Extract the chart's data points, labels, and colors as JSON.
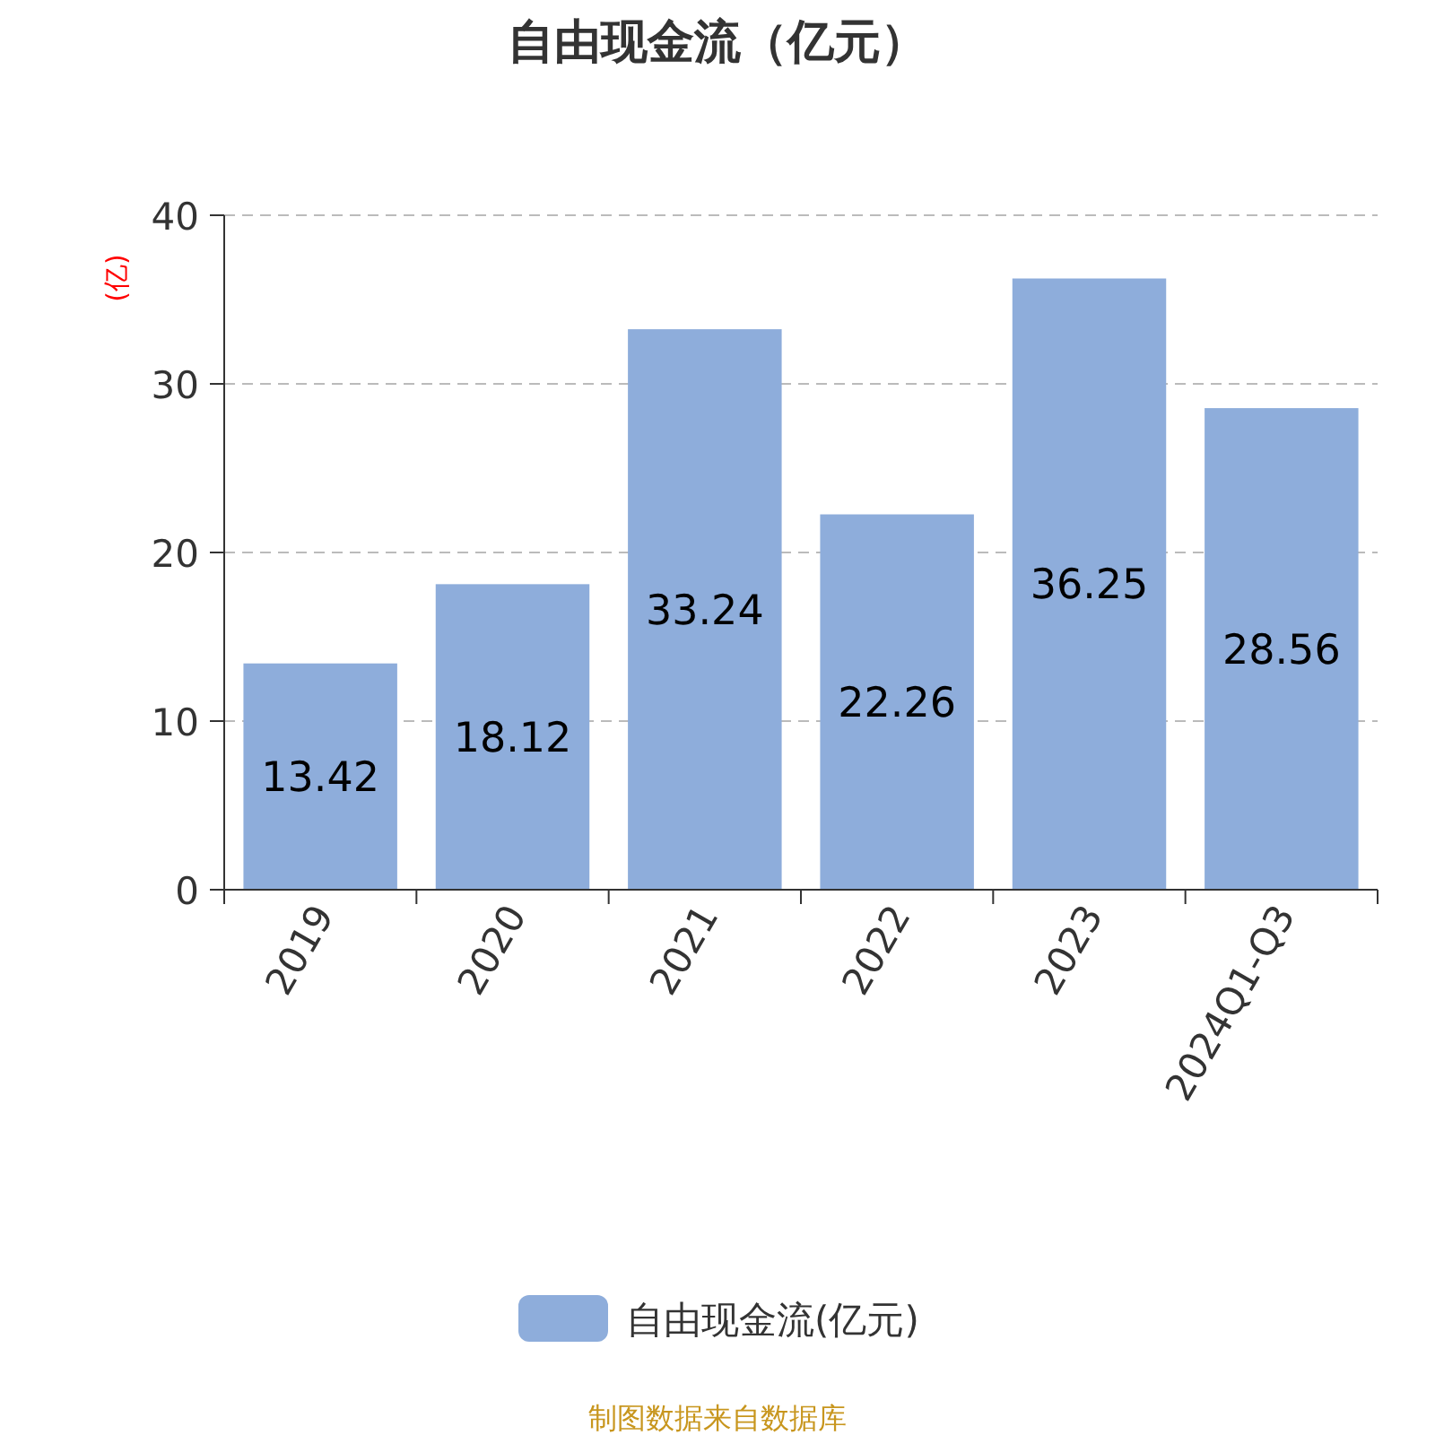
{
  "chart_data": {
    "type": "bar",
    "title": "自由现金流（亿元）",
    "ylabel": "(亿)",
    "categories": [
      "2019",
      "2020",
      "2021",
      "2022",
      "2023",
      "2024Q1-Q3"
    ],
    "series": [
      {
        "name": "自由现金流(亿元)",
        "color": "#8eaddb",
        "values": [
          13.42,
          18.12,
          33.24,
          22.26,
          36.25,
          28.56
        ]
      }
    ],
    "ylim": [
      0,
      40
    ],
    "yticks": [
      0,
      10,
      20,
      30,
      40
    ],
    "grid": "y",
    "legend": "bottom",
    "data_labels": true,
    "annotations": [
      "制图数据来自数据库"
    ]
  }
}
